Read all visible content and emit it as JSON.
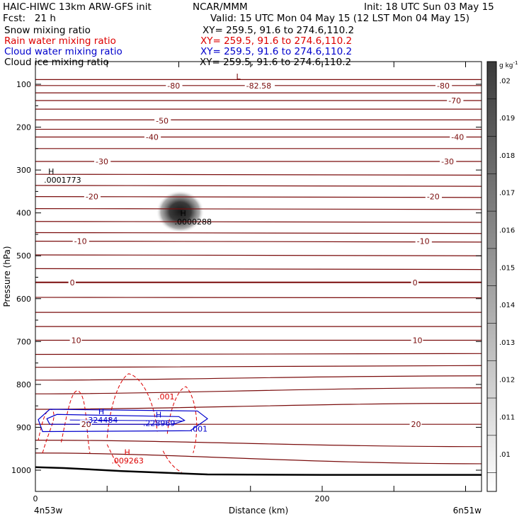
{
  "header": {
    "title_left": "HAIC-HIWC 13km ARW-GFS init",
    "org": "NCAR/MMM",
    "init": "Init: 18 UTC Sun 03 May 15",
    "fcst": "Fcst:   21 h",
    "valid": "Valid: 15 UTC Mon 04 May 15 (12 LST Mon 04 May 15)",
    "fields": [
      {
        "name": "Snow mixing ratio",
        "xy": "XY= 259.5, 91.6 to 274.6,110.2",
        "color": "#000000"
      },
      {
        "name": "Rain water mixing ratio",
        "xy": "XY= 259.5, 91.6 to 274.6,110.2",
        "color": "#dd0000"
      },
      {
        "name": "Cloud water mixing ratio",
        "xy": "XY= 259.5, 91.6 to 274.6,110.2",
        "color": "#0000cc"
      },
      {
        "name": "Cloud ice mixing ratio",
        "xy": "XY= 259.5, 91.6 to 274.6,110.2",
        "color": "#000000"
      }
    ]
  },
  "chart_data": {
    "type": "cross-section contour",
    "xlabel": "Distance (km)",
    "ylabel": "Pressure (hPa)",
    "xlim": [
      0,
      313
    ],
    "ylim": [
      1050,
      70
    ],
    "x_tick_labels": [
      "0",
      "200"
    ],
    "y_tick_labels": [
      "100",
      "200",
      "300",
      "400",
      "500",
      "600",
      "700",
      "800",
      "900",
      "1000"
    ],
    "x_end_labels": [
      "4n53w",
      "6n51w"
    ],
    "temperature_contours_degC": {
      "color": "#7a0c0c",
      "interval": 5,
      "labels": [
        {
          "text": "-80",
          "x": 92,
          "p": 103
        },
        {
          "text": "-80",
          "x": 280,
          "p": 103
        },
        {
          "text": "-82.58",
          "x": 147,
          "p": 103
        },
        {
          "text": "-70",
          "x": 288,
          "p": 138
        },
        {
          "text": "-50",
          "x": 84,
          "p": 185
        },
        {
          "text": "-40",
          "x": 77,
          "p": 223
        },
        {
          "text": "-40",
          "x": 290,
          "p": 223
        },
        {
          "text": "-30",
          "x": 42,
          "p": 280
        },
        {
          "text": "-30",
          "x": 283,
          "p": 280
        },
        {
          "text": "-20",
          "x": 35,
          "p": 362
        },
        {
          "text": "-20",
          "x": 273,
          "p": 362
        },
        {
          "text": "-10",
          "x": 27,
          "p": 466
        },
        {
          "text": "-10",
          "x": 266,
          "p": 466
        },
        {
          "text": "0",
          "x": 24,
          "p": 562
        },
        {
          "text": "0",
          "x": 263,
          "p": 562
        },
        {
          "text": "10",
          "x": 25,
          "p": 697
        },
        {
          "text": "10",
          "x": 263,
          "p": 697
        },
        {
          "text": "20",
          "x": 32,
          "p": 893
        },
        {
          "text": "20",
          "x": 262,
          "p": 893
        }
      ],
      "extremes": [
        {
          "text": "L",
          "x": 140,
          "p": 82
        }
      ]
    },
    "snow_mixing_ratio": {
      "units": "g kg-1",
      "max": {
        "text": ".0001773",
        "x": 5,
        "p": 320
      },
      "blob_max": {
        "text": ".0000288",
        "x": 100,
        "p": 417
      }
    },
    "rain_water_mixing_ratio": {
      "color": "#dd0000",
      "labels": [
        {
          "text": ".001",
          "x": 80,
          "p": 828
        }
      ],
      "max": {
        "text": ".009263",
        "x": 58,
        "p": 978
      }
    },
    "cloud_water_mixing_ratio": {
      "color": "#0000cc",
      "labels": [
        {
          "text": ".001",
          "x": 108,
          "p": 903
        }
      ],
      "maxima": [
        {
          "text": ".324484",
          "x": 35,
          "p": 883
        },
        {
          "text": ".228969",
          "x": 75,
          "p": 890
        }
      ]
    },
    "surface_pressure_line": [
      {
        "x": 0,
        "p": 993
      },
      {
        "x": 20,
        "p": 995
      },
      {
        "x": 60,
        "p": 1002
      },
      {
        "x": 120,
        "p": 1010
      },
      {
        "x": 200,
        "p": 1011
      },
      {
        "x": 313,
        "p": 1011
      }
    ],
    "colorbar": {
      "unit": "g kg",
      "unit_exp": "-1",
      "ticks": [
        ".02",
        ".019",
        ".018",
        ".017",
        ".016",
        ".015",
        ".014",
        ".013",
        ".012",
        ".011",
        ".01"
      ]
    }
  }
}
